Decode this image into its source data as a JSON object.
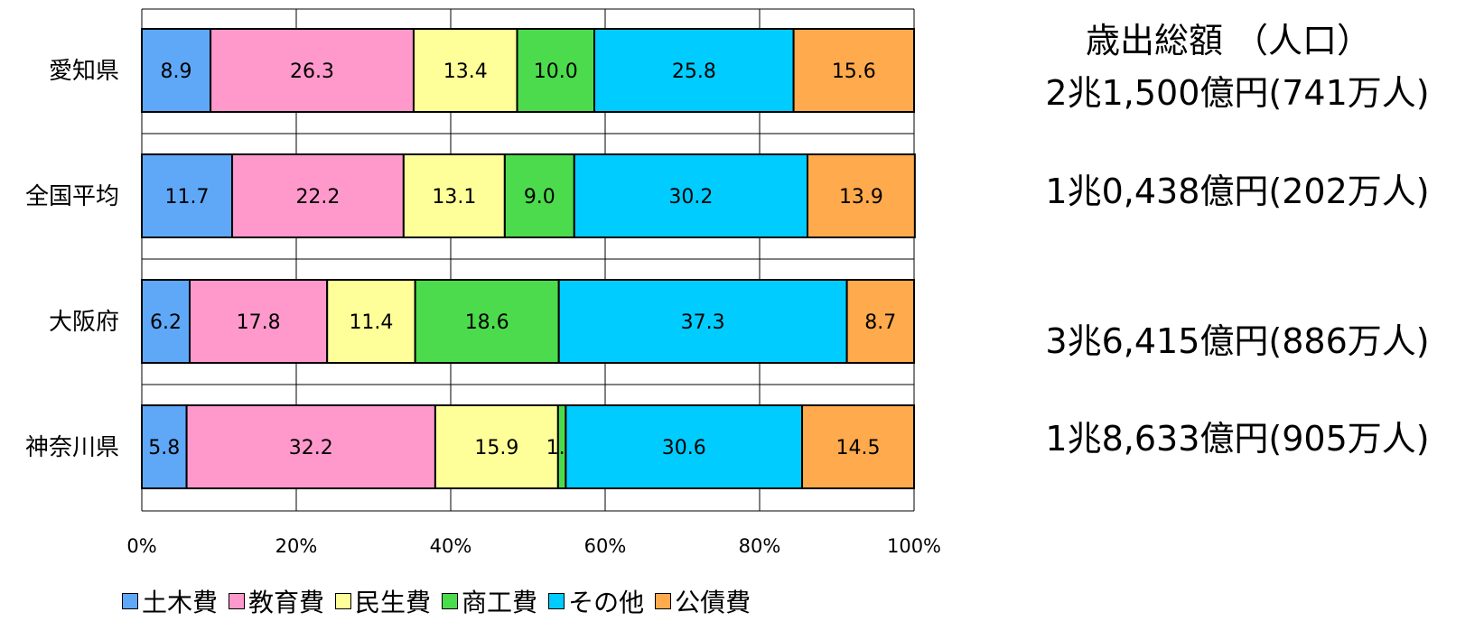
{
  "chart_data": {
    "type": "bar",
    "orientation": "horizontal",
    "stacked": true,
    "categories": [
      "愛知県",
      "全国平均",
      "大阪府",
      "神奈川県"
    ],
    "series": [
      {
        "name": "土木費",
        "color": "#5fa8f8",
        "values": [
          8.9,
          11.7,
          6.2,
          5.8
        ]
      },
      {
        "name": "教育費",
        "color": "#ff99cc",
        "values": [
          26.3,
          22.2,
          17.8,
          32.2
        ]
      },
      {
        "name": "民生費",
        "color": "#ffff99",
        "values": [
          13.4,
          13.1,
          11.4,
          15.9
        ]
      },
      {
        "name": "商工費",
        "color": "#4cdb4c",
        "values": [
          10.0,
          9.0,
          18.6,
          1.0
        ]
      },
      {
        "name": "その他",
        "color": "#00ccff",
        "values": [
          25.8,
          30.2,
          37.3,
          30.6
        ]
      },
      {
        "name": "公債費",
        "color": "#ffaa4c",
        "values": [
          15.6,
          13.9,
          8.7,
          14.5
        ]
      }
    ],
    "xlim": [
      0,
      100
    ],
    "xticks": [
      "0%",
      "20%",
      "40%",
      "60%",
      "80%",
      "100%"
    ],
    "grid": true,
    "legend": "bottom"
  },
  "side_panel": {
    "title": "歳出総額 （人口）",
    "totals": [
      "2兆1,500億円(741万人)",
      "1兆0,438億円(202万人)",
      "3兆6,415億円(886万人)",
      "1兆8,633億円(905万人)"
    ]
  }
}
